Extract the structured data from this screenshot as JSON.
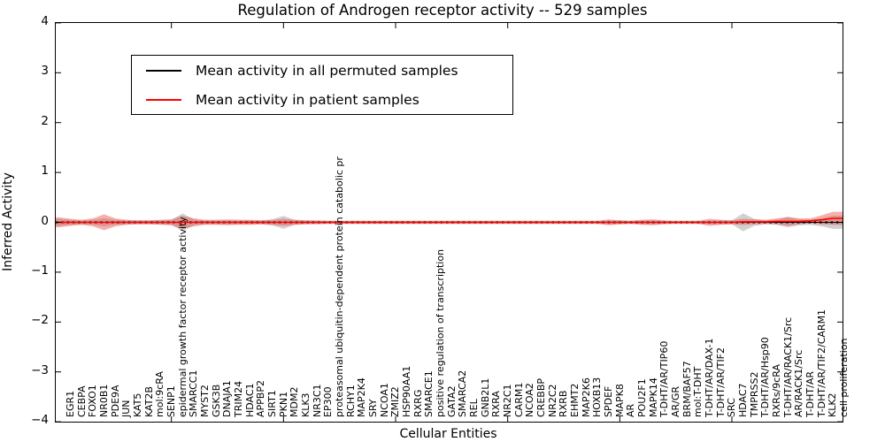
{
  "figure": {
    "title": "Regulation of Androgen receptor activity -- 529 samples",
    "xlabel": "Cellular Entities",
    "ylabel": "Inferred Activity"
  },
  "legend": {
    "entries": [
      {
        "label": "Mean activity in all permuted samples",
        "color": "#000000"
      },
      {
        "label": "Mean activity in patient samples",
        "color": "#ff0000"
      }
    ],
    "position": "upper-left"
  },
  "chart_data": {
    "type": "area",
    "title": "Regulation of Androgen receptor activity -- 529 samples",
    "xlabel": "Cellular Entities",
    "ylabel": "Inferred Activity",
    "ylim": [
      -4,
      4
    ],
    "yticks": [
      4,
      3,
      2,
      1,
      0,
      -1,
      -2,
      -3,
      -4
    ],
    "grid": false,
    "legend_position": "upper left",
    "categories": [
      "EGR1",
      "CEBPA",
      "FOXO1",
      "NR0B1",
      "PDE9A",
      "JUN",
      "KAT5",
      "KAT2B",
      "mol:9cRA",
      "SENP1",
      "epidermal growth factor receptor activity",
      "SMARCC1",
      "MYST2",
      "GSK3B",
      "DNAJA1",
      "TRIM24",
      "HDAC1",
      "APPBP2",
      "SIRT1",
      "PKN1",
      "MDM2",
      "KLK3",
      "NR3C1",
      "EP300",
      "proteasomal ubiquitin-dependent protein catabolic pr",
      "RCHY1",
      "MAP2K4",
      "SRY",
      "NCOA1",
      "ZMIZ2",
      "HSP90AA1",
      "RXRG",
      "SMARCE1",
      "positive regulation of transcription",
      "GATA2",
      "SMARCA2",
      "REL",
      "GNB2L1",
      "RXRA",
      "NR2C1",
      "CARM1",
      "NCOA2",
      "CREBBP",
      "NR2C2",
      "RXRB",
      "EHMT2",
      "MAP2K6",
      "HOXB13",
      "SPDEF",
      "MAPK8",
      "AR",
      "POU2F1",
      "MAPK14",
      "T-DHT/AR/TIP60",
      "AR/GR",
      "BRM/BAF57",
      "mol:T-DHT",
      "T-DHT/AR/DAX-1",
      "T-DHT/AR/TIF2",
      "SRC",
      "HDAC7",
      "TMPRSS2",
      "T-DHT/AR/Hsp90",
      "RXRs/9cRA",
      "T-DHT/AR/RACK1/Src",
      "AR/RACK1/Src",
      "T-DHT/AR",
      "T-DHT/AR/TIF2/CARM1",
      "KLK2",
      "cell proliferation"
    ],
    "series": [
      {
        "name": "Mean activity in all permuted samples",
        "style": "line-dotted",
        "color": "#000000",
        "constant": 0
      },
      {
        "name": "Mean activity in patient samples",
        "style": "line",
        "color": "#ff0000",
        "values": [
          0,
          0,
          0,
          0,
          0,
          0,
          0,
          0,
          0,
          0,
          0,
          0,
          0,
          0,
          0,
          0,
          0,
          0,
          0,
          0,
          0,
          0,
          0,
          0,
          0,
          0,
          0,
          0,
          0,
          0,
          0,
          0,
          0,
          0,
          0,
          0,
          0,
          0,
          0,
          0,
          0,
          0,
          0,
          0,
          0,
          0,
          0,
          0,
          0,
          0,
          0,
          0,
          0,
          0,
          0,
          0,
          0,
          0,
          0,
          0,
          0,
          0.01,
          0.01,
          0.01,
          0.02,
          0.02,
          0.02,
          0.03,
          0.05,
          0.08
        ]
      },
      {
        "name": "Permuted samples band halfwidth",
        "style": "band",
        "color": "#999999",
        "opacity": 0.45,
        "center_constant": 0,
        "values": [
          0.07,
          0.05,
          0.04,
          0.05,
          0.08,
          0.05,
          0.04,
          0.04,
          0.04,
          0.04,
          0.05,
          0.18,
          0.06,
          0.04,
          0.04,
          0.04,
          0.04,
          0.04,
          0.04,
          0.06,
          0.13,
          0.05,
          0.04,
          0.03,
          0.03,
          0.03,
          0.03,
          0.03,
          0.03,
          0.03,
          0.03,
          0.03,
          0.03,
          0.03,
          0.03,
          0.03,
          0.03,
          0.03,
          0.03,
          0.03,
          0.03,
          0.03,
          0.03,
          0.03,
          0.03,
          0.03,
          0.03,
          0.03,
          0.03,
          0.04,
          0.04,
          0.03,
          0.04,
          0.04,
          0.03,
          0.03,
          0.03,
          0.03,
          0.04,
          0.04,
          0.04,
          0.18,
          0.07,
          0.04,
          0.05,
          0.1,
          0.06,
          0.05,
          0.08,
          0.13
        ]
      },
      {
        "name": "Patient samples band halfwidth",
        "style": "band",
        "color": "#e8433a",
        "opacity": 0.42,
        "center_series": 1,
        "values": [
          0.1,
          0.07,
          0.05,
          0.08,
          0.16,
          0.08,
          0.05,
          0.04,
          0.04,
          0.05,
          0.06,
          0.13,
          0.08,
          0.05,
          0.05,
          0.06,
          0.05,
          0.05,
          0.04,
          0.05,
          0.07,
          0.05,
          0.04,
          0.04,
          0.03,
          0.03,
          0.03,
          0.03,
          0.03,
          0.03,
          0.03,
          0.03,
          0.03,
          0.03,
          0.03,
          0.03,
          0.03,
          0.03,
          0.03,
          0.03,
          0.03,
          0.03,
          0.03,
          0.03,
          0.03,
          0.03,
          0.03,
          0.03,
          0.03,
          0.06,
          0.04,
          0.03,
          0.05,
          0.06,
          0.04,
          0.03,
          0.03,
          0.03,
          0.07,
          0.05,
          0.04,
          0.06,
          0.05,
          0.04,
          0.06,
          0.09,
          0.06,
          0.05,
          0.09,
          0.13
        ]
      }
    ]
  }
}
